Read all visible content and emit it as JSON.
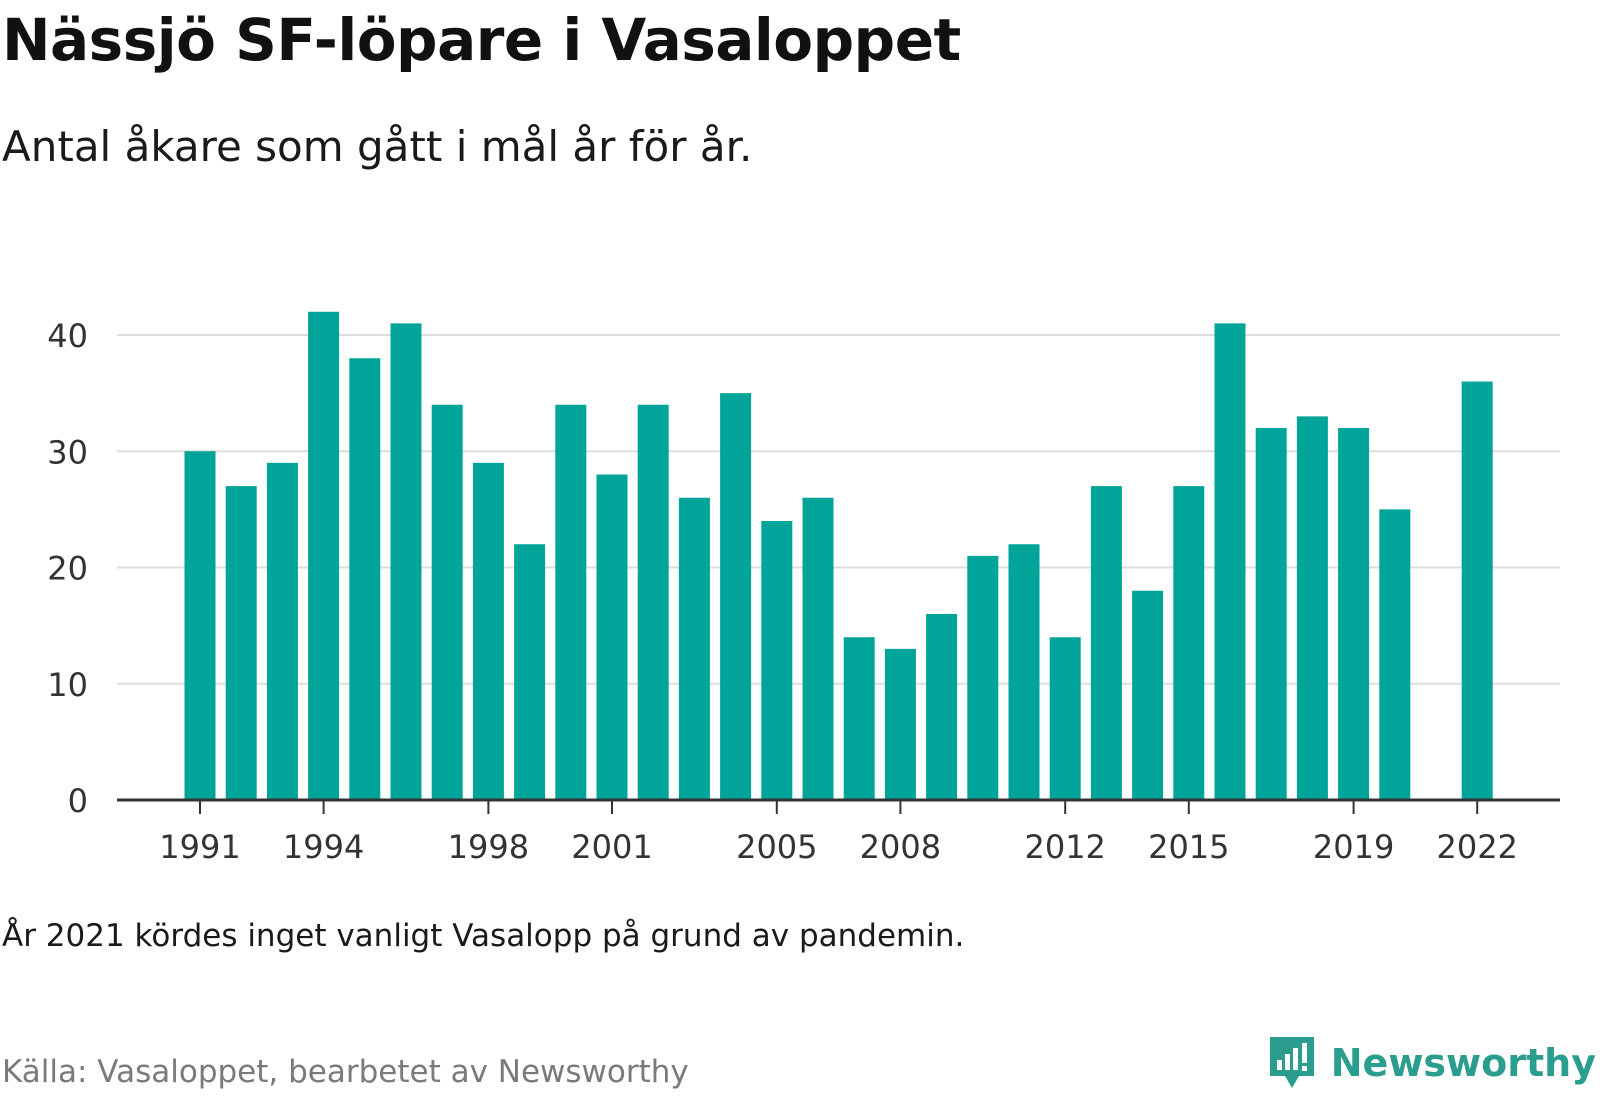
{
  "title": "Nässjö SF-löpare i Vasaloppet",
  "subtitle": "Antal åkare som gått i mål år för år.",
  "note": "År 2021 kördes inget vanligt Vasalopp på grund av pandemin.",
  "source": "Källa: Vasaloppet, bearbetet av Newsworthy",
  "brand": {
    "name": "Newsworthy",
    "icon": "newsworthy-logo-icon"
  },
  "colors": {
    "bar": "#00a499",
    "grid": "#dddddd",
    "axis": "#333333",
    "brand": "#2a9d8f"
  },
  "chart_data": {
    "type": "bar",
    "categories": [
      "1991",
      "1992",
      "1993",
      "1994",
      "1995",
      "1996",
      "1997",
      "1998",
      "1999",
      "2000",
      "2001",
      "2002",
      "2003",
      "2004",
      "2005",
      "2006",
      "2007",
      "2008",
      "2009",
      "2010",
      "2011",
      "2012",
      "2013",
      "2014",
      "2015",
      "2016",
      "2017",
      "2018",
      "2019",
      "2020",
      "2021",
      "2022"
    ],
    "values": [
      30,
      27,
      29,
      42,
      38,
      41,
      34,
      29,
      22,
      34,
      28,
      34,
      26,
      35,
      24,
      26,
      14,
      13,
      16,
      21,
      22,
      14,
      27,
      18,
      27,
      41,
      32,
      33,
      32,
      25,
      null,
      36
    ],
    "x_tick_labels": [
      "1991",
      "1994",
      "1998",
      "2001",
      "2005",
      "2008",
      "2012",
      "2015",
      "2019",
      "2022"
    ],
    "y_ticks": [
      0,
      10,
      20,
      30,
      40
    ],
    "ylim": [
      0,
      45
    ],
    "grid": true,
    "xlabel": "",
    "ylabel": ""
  }
}
